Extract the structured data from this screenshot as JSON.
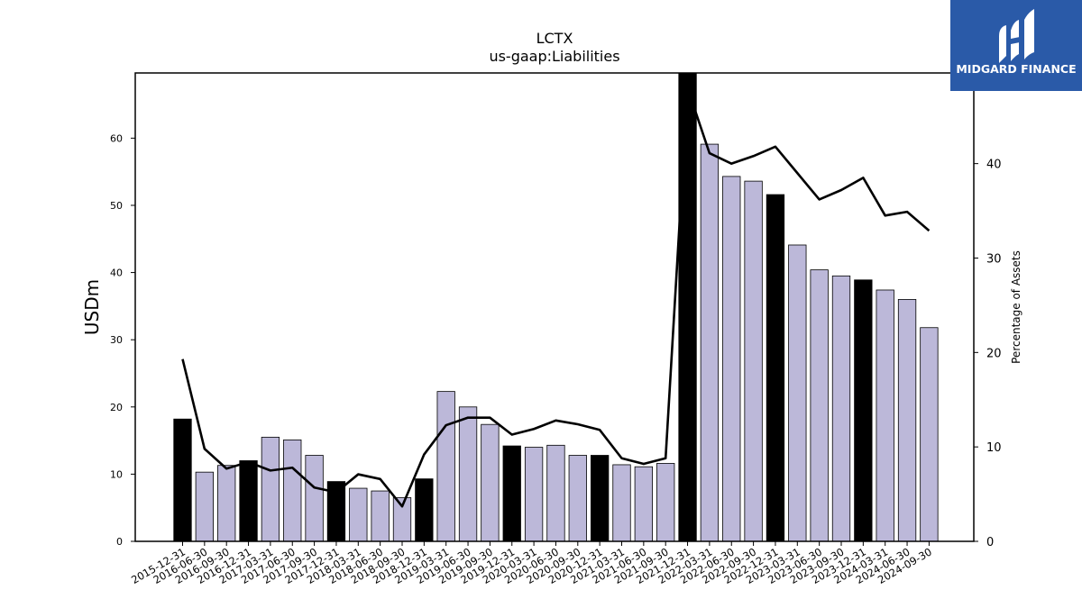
{
  "colors": {
    "annual_bar": "#000000",
    "quarter_bar": "#bcb8d9",
    "line": "#000000",
    "logo_bg": "#2a5aa8"
  },
  "logo": {
    "text": "MIDGARD FINANCE"
  },
  "chart_data": {
    "type": "bar",
    "title": "LCTX",
    "subtitle": "us-gaap:Liabilities",
    "ylabel": "USDm",
    "y2label": "Percentage of Assets",
    "ylim": [
      0,
      69.7
    ],
    "y2lim": [
      0,
      49.6
    ],
    "yticks": [
      0,
      10,
      20,
      30,
      40,
      50,
      60
    ],
    "y2ticks": [
      0,
      10,
      20,
      30,
      40
    ],
    "grid": false,
    "categories": [
      "2015-12-31",
      "2016-06-30",
      "2016-09-30",
      "2016-12-31",
      "2017-03-31",
      "2017-06-30",
      "2017-09-30",
      "2017-12-31",
      "2018-03-31",
      "2018-06-30",
      "2018-09-30",
      "2018-12-31",
      "2019-03-31",
      "2019-06-30",
      "2019-09-30",
      "2019-12-31",
      "2020-03-31",
      "2020-06-30",
      "2020-09-30",
      "2020-12-31",
      "2021-03-31",
      "2021-06-30",
      "2021-09-30",
      "2021-12-31",
      "2022-03-31",
      "2022-06-30",
      "2022-09-30",
      "2022-12-31",
      "2023-03-31",
      "2023-06-30",
      "2023-09-30",
      "2023-12-31",
      "2024-03-31",
      "2024-06-30",
      "2024-09-30"
    ],
    "annual": [
      true,
      false,
      false,
      true,
      false,
      false,
      false,
      true,
      false,
      false,
      false,
      true,
      false,
      false,
      false,
      true,
      false,
      false,
      false,
      true,
      false,
      false,
      false,
      true,
      false,
      false,
      false,
      true,
      false,
      false,
      false,
      true,
      false,
      false,
      false
    ],
    "series": [
      {
        "kind": "bar",
        "axis": "left",
        "values": [
          18.2,
          10.3,
          11.3,
          12.0,
          15.5,
          15.1,
          12.8,
          8.9,
          7.9,
          7.5,
          6.5,
          9.3,
          22.3,
          20.0,
          17.4,
          14.2,
          14.0,
          14.3,
          12.8,
          12.8,
          11.4,
          11.1,
          11.6,
          69.7,
          59.1,
          54.3,
          53.6,
          51.6,
          44.1,
          40.4,
          39.5,
          38.9,
          37.4,
          36.0,
          31.8
        ]
      },
      {
        "kind": "line",
        "axis": "right",
        "values": [
          19.3,
          9.8,
          7.7,
          8.4,
          7.5,
          7.8,
          5.7,
          5.2,
          7.1,
          6.6,
          3.7,
          9.2,
          12.3,
          13.1,
          13.1,
          11.3,
          11.9,
          12.8,
          12.4,
          11.8,
          8.8,
          8.2,
          8.8,
          48.0,
          41.1,
          40.0,
          40.8,
          41.8,
          39.0,
          36.2,
          37.2,
          38.5,
          34.5,
          34.9,
          32.9
        ]
      }
    ]
  }
}
